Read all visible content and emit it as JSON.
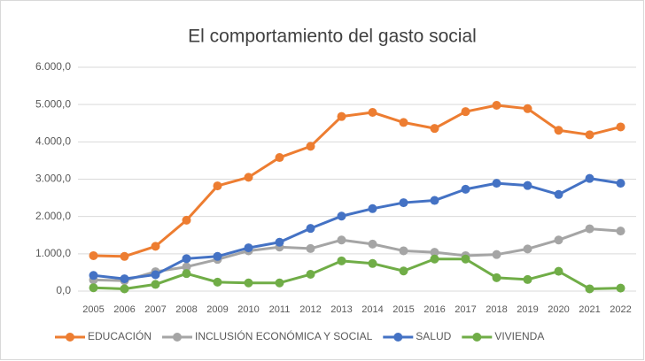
{
  "chart_data": {
    "type": "line",
    "title": "El comportamiento del gasto social",
    "categories": [
      "2005",
      "2006",
      "2007",
      "2008",
      "2009",
      "2010",
      "2011",
      "2012",
      "2013",
      "2014",
      "2015",
      "2016",
      "2017",
      "2018",
      "2019",
      "2020",
      "2021",
      "2022"
    ],
    "series": [
      {
        "name": "EDUCACIÓN",
        "color": "#ed7d31",
        "values": [
          950,
          930,
          1200,
          1900,
          2820,
          3050,
          3580,
          3880,
          4680,
          4790,
          4520,
          4360,
          4810,
          4980,
          4890,
          4310,
          4190,
          4400
        ]
      },
      {
        "name": "INCLUSIÓN ECONÓMICA Y SOCIAL",
        "color": "#a5a5a5",
        "values": [
          300,
          280,
          520,
          650,
          850,
          1080,
          1180,
          1140,
          1370,
          1260,
          1080,
          1040,
          950,
          980,
          1130,
          1370,
          1670,
          1610
        ]
      },
      {
        "name": "SALUD",
        "color": "#4472c4",
        "values": [
          420,
          330,
          440,
          870,
          930,
          1160,
          1310,
          1680,
          2010,
          2210,
          2370,
          2430,
          2730,
          2890,
          2830,
          2590,
          3020,
          2890
        ]
      },
      {
        "name": "VIVIENDA",
        "color": "#70ad47",
        "values": [
          90,
          60,
          180,
          470,
          240,
          220,
          220,
          450,
          810,
          740,
          540,
          860,
          860,
          360,
          310,
          530,
          60,
          80
        ]
      }
    ],
    "ylim": [
      0,
      6000
    ],
    "yticks": [
      {
        "value": 0,
        "label": "0,0"
      },
      {
        "value": 1000,
        "label": "1.000,0"
      },
      {
        "value": 2000,
        "label": "2.000,0"
      },
      {
        "value": 3000,
        "label": "3.000,0"
      },
      {
        "value": 4000,
        "label": "4.000,0"
      },
      {
        "value": 5000,
        "label": "5.000,0"
      },
      {
        "value": 6000,
        "label": "6.000,0"
      }
    ],
    "grid": true,
    "legend": "bottom"
  }
}
